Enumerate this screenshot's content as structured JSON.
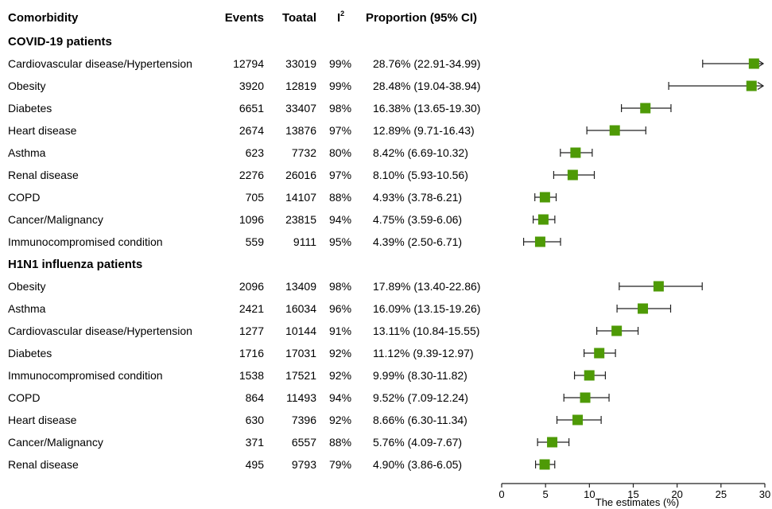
{
  "chart_data": {
    "type": "forest",
    "headers": {
      "comorbidity": "Comorbidity",
      "events": "Events",
      "total": "Toatal",
      "i2": "I",
      "i2_sup": "2",
      "proportion": "Proportion (95% CI)"
    },
    "groups": [
      {
        "name": "COVID-19 patients",
        "rows": [
          {
            "label": "Cardiovascular disease/Hypertension",
            "events": "12794",
            "total": "33019",
            "i2": "99%",
            "ci_text": "28.76% (22.91-34.99)",
            "est": 28.76,
            "low": 22.91,
            "high": 34.99
          },
          {
            "label": "Obesity",
            "events": "3920",
            "total": "12819",
            "i2": "99%",
            "ci_text": "28.48% (19.04-38.94)",
            "est": 28.48,
            "low": 19.04,
            "high": 38.94
          },
          {
            "label": "Diabetes",
            "events": "6651",
            "total": "33407",
            "i2": "98%",
            "ci_text": "16.38% (13.65-19.30)",
            "est": 16.38,
            "low": 13.65,
            "high": 19.3
          },
          {
            "label": "Heart disease",
            "events": "2674",
            "total": "13876",
            "i2": "97%",
            "ci_text": "12.89% (9.71-16.43)",
            "est": 12.89,
            "low": 9.71,
            "high": 16.43
          },
          {
            "label": "Asthma",
            "events": "623",
            "total": "7732",
            "i2": "80%",
            "ci_text": "8.42% (6.69-10.32)",
            "est": 8.42,
            "low": 6.69,
            "high": 10.32
          },
          {
            "label": "Renal disease",
            "events": "2276",
            "total": "26016",
            "i2": "97%",
            "ci_text": "8.10% (5.93-10.56)",
            "est": 8.1,
            "low": 5.93,
            "high": 10.56
          },
          {
            "label": "COPD",
            "events": "705",
            "total": "14107",
            "i2": "88%",
            "ci_text": "4.93% (3.78-6.21)",
            "est": 4.93,
            "low": 3.78,
            "high": 6.21
          },
          {
            "label": "Cancer/Malignancy",
            "events": "1096",
            "total": "23815",
            "i2": "94%",
            "ci_text": "4.75% (3.59-6.06)",
            "est": 4.75,
            "low": 3.59,
            "high": 6.06
          },
          {
            "label": "Immunocompromised condition",
            "events": "559",
            "total": "9111",
            "i2": "95%",
            "ci_text": "4.39% (2.50-6.71)",
            "est": 4.39,
            "low": 2.5,
            "high": 6.71
          }
        ]
      },
      {
        "name": "H1N1 influenza patients",
        "rows": [
          {
            "label": "Obesity",
            "events": "2096",
            "total": "13409",
            "i2": "98%",
            "ci_text": "17.89% (13.40-22.86)",
            "est": 17.89,
            "low": 13.4,
            "high": 22.86
          },
          {
            "label": "Asthma",
            "events": "2421",
            "total": "16034",
            "i2": "96%",
            "ci_text": "16.09% (13.15-19.26)",
            "est": 16.09,
            "low": 13.15,
            "high": 19.26
          },
          {
            "label": "Cardiovascular disease/Hypertension",
            "events": "1277",
            "total": "10144",
            "i2": "91%",
            "ci_text": "13.11% (10.84-15.55)",
            "est": 13.11,
            "low": 10.84,
            "high": 15.55
          },
          {
            "label": "Diabetes",
            "events": "1716",
            "total": "17031",
            "i2": "92%",
            "ci_text": "11.12% (9.39-12.97)",
            "est": 11.12,
            "low": 9.39,
            "high": 12.97
          },
          {
            "label": "Immunocompromised condition",
            "events": "1538",
            "total": "17521",
            "i2": "92%",
            "ci_text": "9.99% (8.30-11.82)",
            "est": 9.99,
            "low": 8.3,
            "high": 11.82
          },
          {
            "label": "COPD",
            "events": "864",
            "total": "11493",
            "i2": "94%",
            "ci_text": "9.52% (7.09-12.24)",
            "est": 9.52,
            "low": 7.09,
            "high": 12.24
          },
          {
            "label": "Heart disease",
            "events": "630",
            "total": "7396",
            "i2": "92%",
            "ci_text": "8.66% (6.30-11.34)",
            "est": 8.66,
            "low": 6.3,
            "high": 11.34
          },
          {
            "label": "Cancer/Malignancy",
            "events": "371",
            "total": "6557",
            "i2": "88%",
            "ci_text": "5.76% (4.09-7.67)",
            "est": 5.76,
            "low": 4.09,
            "high": 7.67
          },
          {
            "label": "Renal disease",
            "events": "495",
            "total": "9793",
            "i2": "79%",
            "ci_text": "4.90% (3.86-6.05)",
            "est": 4.9,
            "low": 3.86,
            "high": 6.05
          }
        ]
      }
    ],
    "xlim": [
      0,
      30
    ],
    "xticks": [
      0,
      5,
      10,
      15,
      20,
      25,
      30
    ],
    "xlabel": "The estimates (%)",
    "marker_color": "#4e9a06",
    "line_color": "#222222"
  }
}
